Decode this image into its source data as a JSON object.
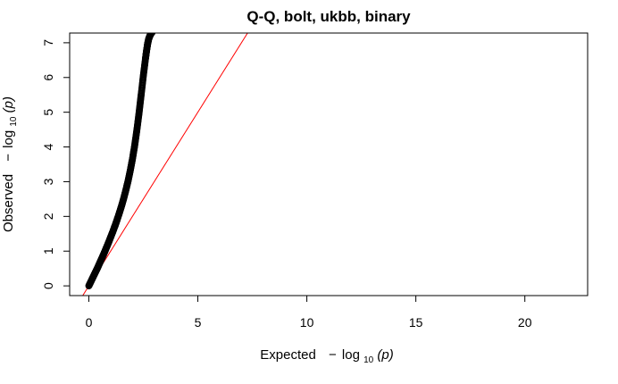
{
  "chart_data": {
    "type": "scatter",
    "title": "Q-Q, bolt, ukbb, binary",
    "xlabel": {
      "prefix": "Expected",
      "minus": "−",
      "log": "log",
      "base": "10",
      "arg": "(p)"
    },
    "ylabel": {
      "prefix": "Observed",
      "minus": "−",
      "log": "log",
      "base": "10",
      "arg": "(p)"
    },
    "xlim": [
      -0.88,
      22.88
    ],
    "ylim": [
      -0.28,
      7.28
    ],
    "xticks": [
      0,
      5,
      10,
      15,
      20
    ],
    "yticks": [
      0,
      1,
      2,
      3,
      4,
      5,
      6,
      7
    ],
    "grid": false,
    "legend": "none",
    "series": [
      {
        "kind": "points",
        "color": "#000000",
        "x": [
          0.0,
          0.1,
          0.2,
          0.3,
          0.4,
          0.5,
          0.6,
          0.7,
          0.8,
          0.9,
          1.0,
          1.1,
          1.2,
          1.3,
          1.4,
          1.5,
          1.6,
          1.7,
          1.8,
          1.9,
          2.0,
          2.1,
          2.2,
          2.3,
          2.4,
          2.5,
          2.6,
          2.65,
          2.7,
          2.75,
          2.8,
          2.85,
          2.9
        ],
        "y": [
          0.0,
          0.13,
          0.26,
          0.39,
          0.52,
          0.66,
          0.8,
          0.94,
          1.09,
          1.24,
          1.4,
          1.56,
          1.73,
          1.91,
          2.1,
          2.3,
          2.52,
          2.76,
          3.02,
          3.32,
          3.65,
          4.03,
          4.47,
          4.96,
          5.5,
          6.05,
          6.55,
          6.78,
          6.98,
          7.12,
          7.2,
          7.26,
          7.3
        ]
      },
      {
        "kind": "reference-line",
        "color": "#ff0000",
        "x": [
          -0.88,
          7.4
        ],
        "y": [
          -0.88,
          7.4
        ]
      }
    ]
  }
}
